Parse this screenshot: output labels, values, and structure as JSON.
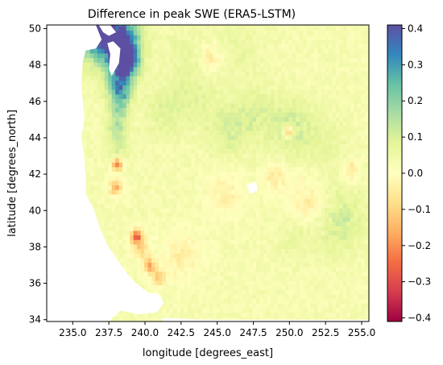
{
  "chart_data": {
    "type": "heatmap",
    "title": "Difference in peak SWE (ERA5-LSTM)",
    "xlabel": "longitude [degrees_east]",
    "ylabel": "latitude [degrees_north]",
    "xlim": [
      233.2,
      255.5
    ],
    "ylim": [
      33.9,
      50.2
    ],
    "x_ticks": [
      {
        "value": 235.0,
        "label": "235.0"
      },
      {
        "value": 237.5,
        "label": "237.5"
      },
      {
        "value": 240.0,
        "label": "240.0"
      },
      {
        "value": 242.5,
        "label": "242.5"
      },
      {
        "value": 245.0,
        "label": "245.0"
      },
      {
        "value": 247.5,
        "label": "247.5"
      },
      {
        "value": 250.0,
        "label": "250.0"
      },
      {
        "value": 252.5,
        "label": "252.5"
      },
      {
        "value": 255.0,
        "label": "255.0"
      }
    ],
    "y_ticks": [
      {
        "value": 34,
        "label": "34"
      },
      {
        "value": 36,
        "label": "36"
      },
      {
        "value": 38,
        "label": "38"
      },
      {
        "value": 40,
        "label": "40"
      },
      {
        "value": 42,
        "label": "42"
      },
      {
        "value": 44,
        "label": "44"
      },
      {
        "value": 46,
        "label": "46"
      },
      {
        "value": 48,
        "label": "48"
      },
      {
        "value": 50,
        "label": "50"
      }
    ],
    "colormap": "Spectral",
    "color_range": [
      -0.41,
      0.41
    ],
    "colorbar_ticks": [
      {
        "value": 0.4,
        "label": "0.4"
      },
      {
        "value": 0.3,
        "label": "0.3"
      },
      {
        "value": 0.2,
        "label": "0.2"
      },
      {
        "value": 0.1,
        "label": "0.1"
      },
      {
        "value": 0.0,
        "label": "0.0"
      },
      {
        "value": -0.1,
        "label": "−0.1"
      },
      {
        "value": -0.2,
        "label": "−0.2"
      },
      {
        "value": -0.3,
        "label": "−0.3"
      },
      {
        "value": -0.4,
        "label": "−0.4"
      }
    ],
    "grid_resolution_deg": 0.25,
    "background_value": 0.03,
    "no_data_regions": [
      {
        "name": "pacific-ocean-coast",
        "polygon": [
          [
            233.2,
            50.2
          ],
          [
            233.2,
            33.9
          ],
          [
            237.5,
            33.9
          ],
          [
            238.3,
            34.5
          ],
          [
            239.6,
            34.3
          ],
          [
            240.8,
            34.4
          ],
          [
            241.3,
            34.9
          ],
          [
            241.0,
            35.4
          ],
          [
            240.2,
            35.5
          ],
          [
            239.4,
            36.0
          ],
          [
            238.8,
            36.5
          ],
          [
            238.0,
            37.4
          ],
          [
            237.4,
            38.1
          ],
          [
            236.9,
            39.0
          ],
          [
            236.4,
            40.2
          ],
          [
            235.9,
            40.9
          ],
          [
            235.9,
            41.8
          ],
          [
            235.8,
            42.9
          ],
          [
            235.6,
            44.0
          ],
          [
            235.8,
            45.0
          ],
          [
            235.7,
            46.0
          ],
          [
            235.6,
            47.0
          ],
          [
            235.7,
            48.2
          ],
          [
            235.9,
            48.8
          ],
          [
            236.6,
            48.9
          ],
          [
            237.0,
            49.4
          ],
          [
            236.6,
            50.2
          ]
        ]
      },
      {
        "name": "puget-sound",
        "polygon": [
          [
            237.4,
            49.2
          ],
          [
            237.8,
            49.3
          ],
          [
            238.3,
            48.9
          ],
          [
            238.2,
            48.1
          ],
          [
            237.7,
            47.4
          ],
          [
            237.5,
            47.8
          ],
          [
            237.6,
            48.6
          ]
        ]
      },
      {
        "name": "salish-sea",
        "polygon": [
          [
            236.8,
            50.2
          ],
          [
            237.6,
            50.2
          ],
          [
            238.0,
            49.8
          ],
          [
            237.5,
            49.6
          ],
          [
            237.1,
            49.8
          ]
        ]
      },
      {
        "name": "great-salt-lake",
        "polygon": [
          [
            247.0,
            41.4
          ],
          [
            247.7,
            41.6
          ],
          [
            247.8,
            41.1
          ],
          [
            247.3,
            40.9
          ]
        ]
      },
      {
        "name": "mexico",
        "polygon": [
          [
            241.2,
            34.1
          ],
          [
            241.2,
            33.9
          ],
          [
            255.5,
            33.9
          ],
          [
            255.5,
            34.0
          ],
          [
            244.0,
            34.0
          ]
        ]
      }
    ],
    "hotspots": [
      {
        "lon": 237.5,
        "lat": 49.95,
        "r": 1.3,
        "v": 0.34
      },
      {
        "lon": 236.5,
        "lat": 50.1,
        "r": 0.9,
        "v": 0.28
      },
      {
        "lon": 238.4,
        "lat": 49.0,
        "r": 0.7,
        "v": 0.3
      },
      {
        "lon": 238.7,
        "lat": 48.35,
        "r": 0.5,
        "v": 0.37
      },
      {
        "lon": 238.5,
        "lat": 47.9,
        "r": 0.6,
        "v": 0.22
      },
      {
        "lon": 238.2,
        "lat": 47.0,
        "r": 0.6,
        "v": 0.2
      },
      {
        "lon": 238.3,
        "lat": 46.4,
        "r": 0.5,
        "v": 0.17
      },
      {
        "lon": 238.2,
        "lat": 45.5,
        "r": 0.5,
        "v": 0.14
      },
      {
        "lon": 238.1,
        "lat": 44.5,
        "r": 0.5,
        "v": 0.12
      },
      {
        "lon": 238.2,
        "lat": 43.5,
        "r": 0.5,
        "v": 0.1
      },
      {
        "lon": 238.0,
        "lat": 41.25,
        "r": 0.35,
        "v": -0.12
      },
      {
        "lon": 238.1,
        "lat": 42.55,
        "r": 0.25,
        "v": -0.2
      },
      {
        "lon": 239.4,
        "lat": 38.6,
        "r": 0.3,
        "v": -0.22
      },
      {
        "lon": 239.7,
        "lat": 38.0,
        "r": 0.4,
        "v": -0.1
      },
      {
        "lon": 240.3,
        "lat": 37.0,
        "r": 0.3,
        "v": -0.16
      },
      {
        "lon": 240.9,
        "lat": 36.3,
        "r": 0.3,
        "v": -0.12
      },
      {
        "lon": 249.9,
        "lat": 44.35,
        "r": 0.22,
        "v": -0.22
      },
      {
        "lon": 241.5,
        "lat": 45.5,
        "r": 1.0,
        "v": 0.09
      },
      {
        "lon": 243.5,
        "lat": 46.3,
        "r": 0.9,
        "v": 0.07
      },
      {
        "lon": 245.8,
        "lat": 44.5,
        "r": 1.1,
        "v": 0.1
      },
      {
        "lon": 247.8,
        "lat": 45.4,
        "r": 1.0,
        "v": 0.08
      },
      {
        "lon": 250.2,
        "lat": 44.6,
        "r": 1.1,
        "v": 0.11
      },
      {
        "lon": 252.5,
        "lat": 43.5,
        "r": 1.0,
        "v": 0.07
      },
      {
        "lon": 253.5,
        "lat": 39.5,
        "r": 1.2,
        "v": 0.11
      },
      {
        "lon": 252.0,
        "lat": 41.0,
        "r": 0.9,
        "v": 0.06
      },
      {
        "lon": 250.5,
        "lat": 38.5,
        "r": 0.9,
        "v": 0.07
      },
      {
        "lon": 243.0,
        "lat": 48.4,
        "r": 1.2,
        "v": 0.06
      },
      {
        "lon": 246.5,
        "lat": 49.0,
        "r": 1.2,
        "v": 0.06
      },
      {
        "lon": 251.5,
        "lat": 40.5,
        "r": 1.0,
        "v": -0.07
      },
      {
        "lon": 249.0,
        "lat": 41.8,
        "r": 0.6,
        "v": -0.05
      },
      {
        "lon": 244.5,
        "lat": 48.4,
        "r": 0.6,
        "v": -0.05
      },
      {
        "lon": 245.5,
        "lat": 41.0,
        "r": 0.9,
        "v": -0.04
      },
      {
        "lon": 254.3,
        "lat": 42.2,
        "r": 0.4,
        "v": -0.07
      },
      {
        "lon": 242.5,
        "lat": 37.5,
        "r": 1.0,
        "v": -0.04
      }
    ]
  }
}
